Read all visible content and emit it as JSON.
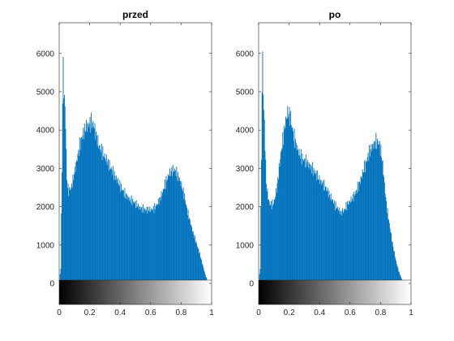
{
  "chart_data": [
    {
      "type": "bar",
      "title": "przed",
      "xlabel": "",
      "ylabel": "",
      "color": "#0072BD",
      "xlim": [
        0,
        1
      ],
      "ylim": [
        -550,
        6800
      ],
      "x_ticks": [
        "0",
        "0.2",
        "0.4",
        "0.6",
        "0.8",
        "1"
      ],
      "y_ticks": [
        "0",
        "1000",
        "2000",
        "3000",
        "4000",
        "5000",
        "6000"
      ],
      "colorbar": {
        "range": [
          0,
          1
        ],
        "from": "#000000",
        "to": "#ffffff"
      },
      "grid": false,
      "x": [
        0.0,
        0.01,
        0.02,
        0.025,
        0.03,
        0.04,
        0.05,
        0.06,
        0.07,
        0.08,
        0.09,
        0.1,
        0.12,
        0.14,
        0.16,
        0.18,
        0.2,
        0.21,
        0.22,
        0.23,
        0.24,
        0.26,
        0.28,
        0.3,
        0.32,
        0.34,
        0.36,
        0.38,
        0.4,
        0.42,
        0.44,
        0.46,
        0.48,
        0.5,
        0.52,
        0.54,
        0.56,
        0.58,
        0.6,
        0.62,
        0.64,
        0.66,
        0.68,
        0.7,
        0.72,
        0.74,
        0.75,
        0.76,
        0.78,
        0.8,
        0.82,
        0.84,
        0.86,
        0.88,
        0.9,
        0.92,
        0.94,
        0.96,
        0.97,
        0.98,
        0.99,
        1.0
      ],
      "values": [
        0,
        400,
        3700,
        6000,
        5000,
        4500,
        2700,
        2400,
        2450,
        2500,
        2700,
        2900,
        3300,
        3700,
        3950,
        4100,
        4180,
        4200,
        4180,
        4100,
        3900,
        3600,
        3450,
        3300,
        3150,
        3000,
        2850,
        2700,
        2550,
        2400,
        2300,
        2200,
        2150,
        2080,
        2000,
        1960,
        1930,
        1920,
        1920,
        1950,
        2050,
        2200,
        2400,
        2650,
        2850,
        2950,
        2960,
        2950,
        2800,
        2600,
        2300,
        1900,
        1600,
        1300,
        1050,
        800,
        500,
        200,
        100,
        30,
        0,
        0
      ]
    },
    {
      "type": "bar",
      "title": "po",
      "xlabel": "",
      "ylabel": "",
      "color": "#0072BD",
      "xlim": [
        0,
        1
      ],
      "ylim": [
        -550,
        6800
      ],
      "x_ticks": [
        "0",
        "0.2",
        "0.4",
        "0.6",
        "0.8",
        "1"
      ],
      "y_ticks": [
        "0",
        "1000",
        "2000",
        "3000",
        "4000",
        "5000",
        "6000"
      ],
      "colorbar": {
        "range": [
          0,
          1
        ],
        "from": "#000000",
        "to": "#ffffff"
      },
      "grid": false,
      "x": [
        0.0,
        0.01,
        0.02,
        0.025,
        0.03,
        0.04,
        0.05,
        0.06,
        0.07,
        0.08,
        0.1,
        0.12,
        0.14,
        0.16,
        0.18,
        0.19,
        0.2,
        0.21,
        0.22,
        0.24,
        0.26,
        0.28,
        0.3,
        0.32,
        0.34,
        0.36,
        0.38,
        0.4,
        0.42,
        0.44,
        0.46,
        0.48,
        0.5,
        0.52,
        0.54,
        0.56,
        0.58,
        0.6,
        0.62,
        0.64,
        0.66,
        0.68,
        0.7,
        0.72,
        0.74,
        0.76,
        0.77,
        0.78,
        0.79,
        0.8,
        0.81,
        0.82,
        0.83,
        0.84,
        0.86,
        0.88,
        0.9,
        0.92,
        0.94,
        0.96,
        0.98,
        1.0
      ],
      "values": [
        0,
        400,
        4100,
        6200,
        5000,
        3900,
        2600,
        2300,
        2100,
        2050,
        2100,
        2500,
        3200,
        3800,
        4300,
        4450,
        4450,
        4300,
        4050,
        3700,
        3450,
        3300,
        3200,
        3150,
        3050,
        2950,
        2850,
        2700,
        2600,
        2500,
        2350,
        2200,
        2050,
        1950,
        1850,
        1900,
        2050,
        2150,
        2250,
        2400,
        2600,
        2850,
        3100,
        3350,
        3550,
        3650,
        3700,
        3700,
        3650,
        3500,
        3250,
        2850,
        2400,
        2000,
        1500,
        1000,
        600,
        300,
        100,
        30,
        0,
        0
      ]
    }
  ]
}
